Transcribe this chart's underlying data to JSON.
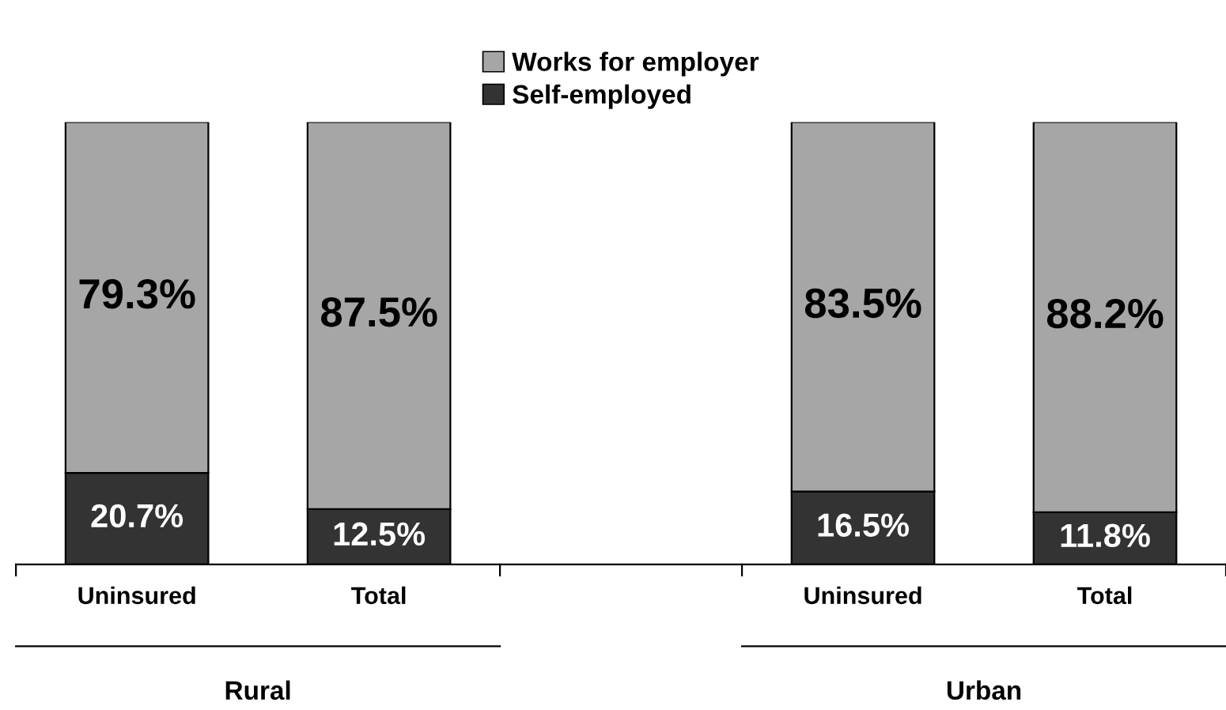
{
  "chart_data": {
    "type": "bar",
    "stacked": true,
    "legend": "top",
    "grid": false,
    "categories": [
      "Uninsured",
      "Total",
      null,
      "Uninsured",
      "Total"
    ],
    "series": [
      {
        "name": "Self-employed",
        "color": "#333333",
        "values": [
          20.7,
          12.5,
          null,
          16.5,
          11.8
        ],
        "value_labels": [
          "20.7%",
          "12.5%",
          null,
          "16.5%",
          "11.8%"
        ]
      },
      {
        "name": "Works for employer",
        "color": "#a6a6a6",
        "values": [
          79.3,
          87.5,
          null,
          83.5,
          88.2
        ],
        "value_labels": [
          "79.3%",
          "87.5%",
          null,
          "83.5%",
          "88.2%"
        ]
      }
    ],
    "annotations": [
      "Rural",
      "Urban"
    ]
  }
}
